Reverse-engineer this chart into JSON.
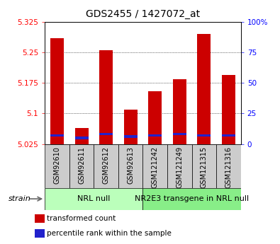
{
  "title": "GDS2455 / 1427072_at",
  "samples": [
    "GSM92610",
    "GSM92611",
    "GSM92612",
    "GSM92613",
    "GSM121242",
    "GSM121249",
    "GSM121315",
    "GSM121316"
  ],
  "groups": [
    {
      "name": "NRL null",
      "indices": [
        0,
        1,
        2,
        3
      ],
      "color": "#bbffbb"
    },
    {
      "name": "NR2E3 transgene in NRL null",
      "indices": [
        4,
        5,
        6,
        7
      ],
      "color": "#88ee88"
    }
  ],
  "red_values": [
    5.285,
    5.065,
    5.255,
    5.11,
    5.155,
    5.185,
    5.295,
    5.195
  ],
  "blue_pct": [
    7,
    5,
    8,
    6,
    7,
    8,
    7,
    7
  ],
  "y_min": 5.025,
  "y_max": 5.325,
  "y_ticks": [
    5.025,
    5.1,
    5.175,
    5.25,
    5.325
  ],
  "y_ticks_right": [
    0,
    25,
    50,
    75,
    100
  ],
  "bar_width": 0.55,
  "red_color": "#cc0000",
  "blue_color": "#2222cc",
  "legend_red": "transformed count",
  "legend_blue": "percentile rank within the sample",
  "title_fontsize": 10,
  "tick_fontsize": 7.5,
  "sample_fontsize": 7,
  "group_fontsize": 8
}
